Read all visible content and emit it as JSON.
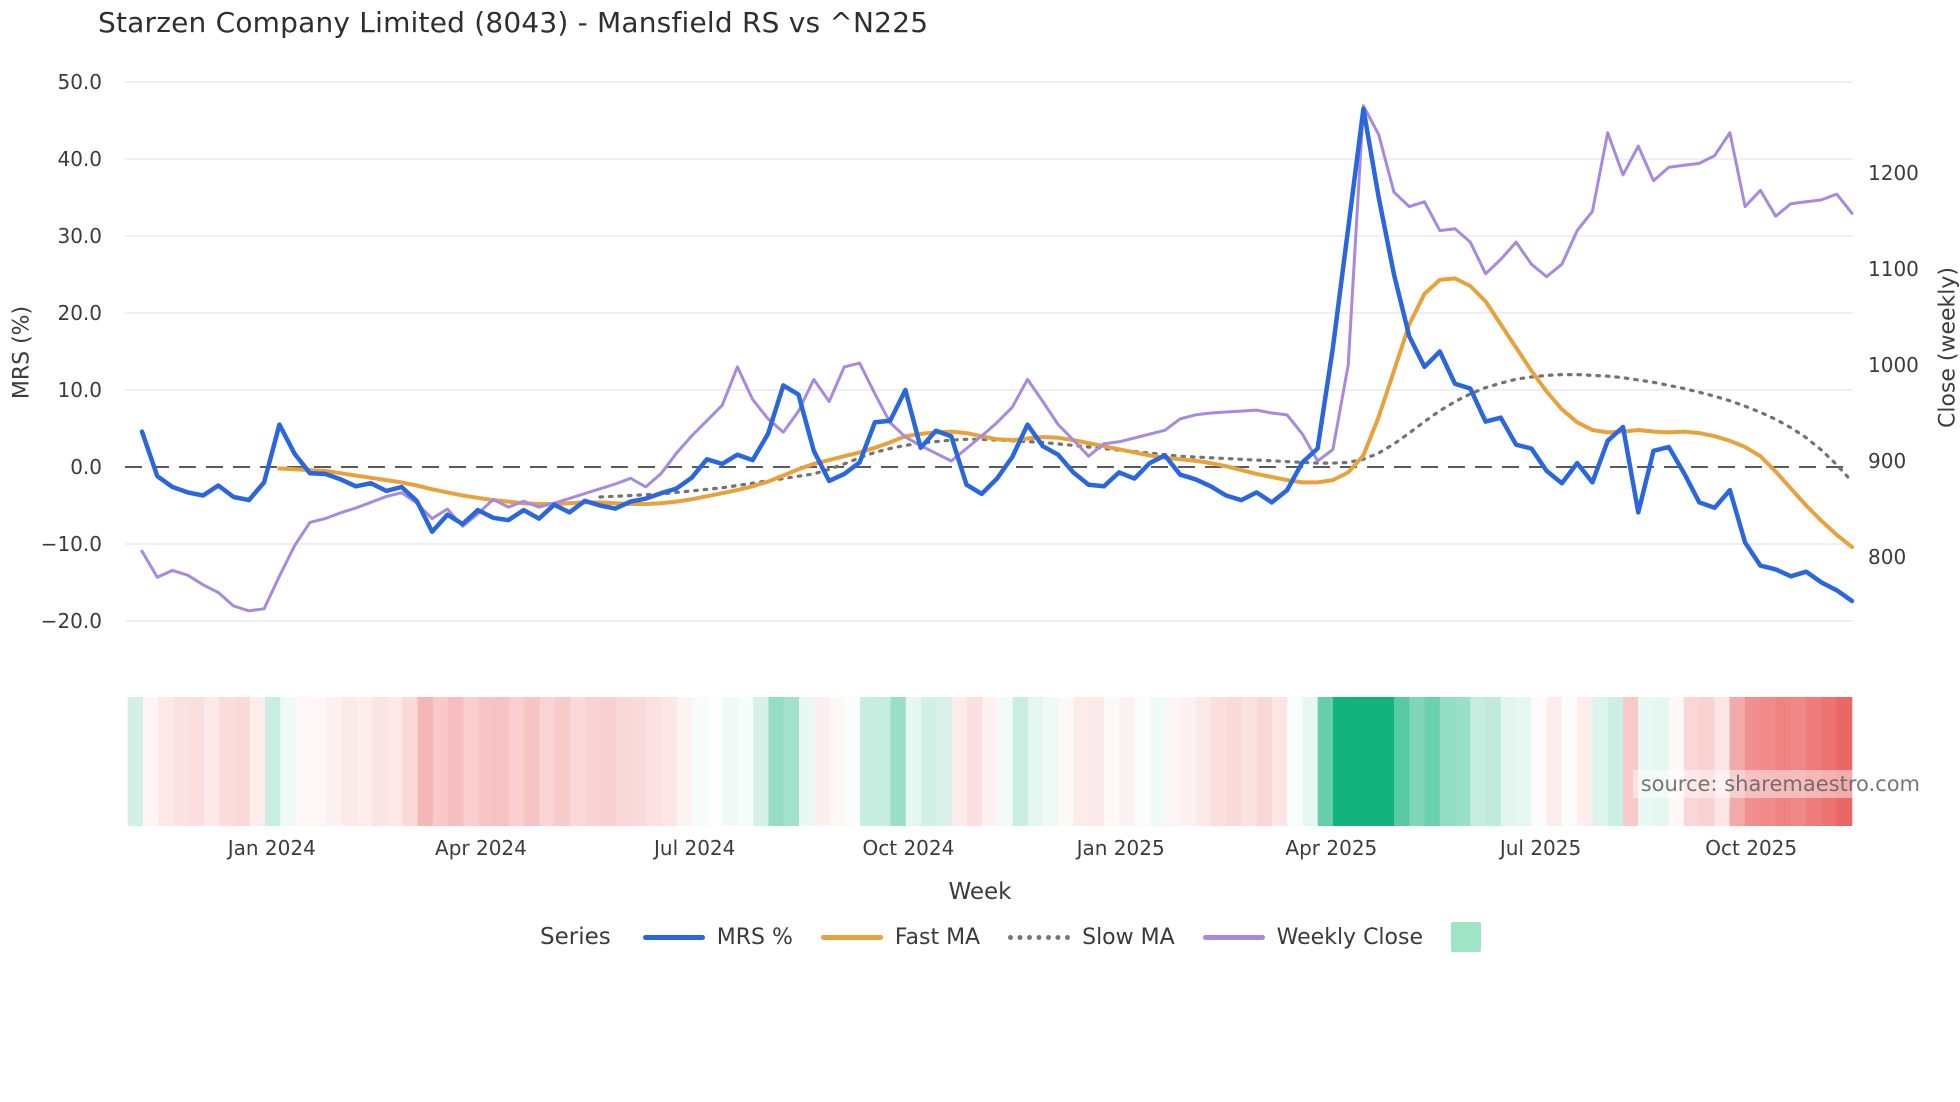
{
  "title": "Starzen Company Limited (8043) - Mansfield RS vs ^N225",
  "source_watermark": "source: sharemaestro.com",
  "axes": {
    "left": {
      "label": "MRS (%)",
      "tick_labels": [
        "50.0",
        "40.0",
        "30.0",
        "20.0",
        "10.0",
        "0.0",
        "−10.0",
        "−20.0"
      ],
      "tick_values": [
        50,
        40,
        30,
        20,
        10,
        0,
        -10,
        -20
      ]
    },
    "right": {
      "label": "Close (weekly)",
      "tick_labels": [
        "1200",
        "1100",
        "1000",
        "900",
        "800"
      ],
      "tick_values": [
        1200,
        1100,
        1000,
        900,
        800
      ]
    },
    "x": {
      "label": "Week",
      "tick_labels": [
        "Jan 2024",
        "Apr 2024",
        "Jul 2024",
        "Oct 2024",
        "Jan 2025",
        "Apr 2025",
        "Jul 2025",
        "Oct 2025"
      ]
    }
  },
  "legend": {
    "title": "Series",
    "items": [
      {
        "label": "MRS %",
        "swatch": "line-blue"
      },
      {
        "label": "Fast MA",
        "swatch": "line-orange"
      },
      {
        "label": "Slow MA",
        "swatch": "line-dotted-gray"
      },
      {
        "label": "Weekly Close",
        "swatch": "line-purple"
      },
      {
        "label": "",
        "swatch": "green-square"
      }
    ]
  },
  "colors": {
    "mrs": "#2a66de",
    "fast_ma": "#e9a13b",
    "slow_ma": "#737373",
    "weekly_close": "#a78ae0",
    "zero_line": "#5a5a5a",
    "gridline": "#e8ecf3",
    "heat_positive": "#12b37d",
    "heat_negative": "#e8504f",
    "legend_square": "#a0e4c7"
  },
  "chart_data": {
    "type": "line",
    "x_unit": "weekly",
    "weeks_shown": 113,
    "x_tick_weeks": [
      8.5,
      22.2,
      36.2,
      50.2,
      64.1,
      77.9,
      91.6,
      105.4
    ],
    "left_axis_range": [
      -25,
      52
    ],
    "right_axis_range": [
      740,
      1300
    ],
    "grid": true,
    "zero_reference_line": 0,
    "series": [
      {
        "name": "MRS %",
        "axis": "left",
        "style": "solid",
        "width": 4.5,
        "values": [
          4.6,
          -1.2,
          -2.6,
          -3.3,
          -3.7,
          -2.4,
          -3.9,
          -4.3,
          -2.0,
          5.5,
          1.7,
          -0.8,
          -0.9,
          -1.6,
          -2.5,
          -2.1,
          -3.1,
          -2.6,
          -4.4,
          -8.4,
          -6.2,
          -7.4,
          -5.6,
          -6.6,
          -6.9,
          -5.6,
          -6.7,
          -4.9,
          -5.9,
          -4.4,
          -5.0,
          -5.4,
          -4.5,
          -4.1,
          -3.4,
          -2.8,
          -1.4,
          1.0,
          0.4,
          1.6,
          0.9,
          4.3,
          10.6,
          9.4,
          2.1,
          -1.8,
          -0.9,
          0.6,
          5.8,
          6.0,
          10.0,
          2.5,
          4.7,
          4.0,
          -2.3,
          -3.5,
          -1.5,
          1.3,
          5.5,
          2.7,
          1.6,
          -0.7,
          -2.3,
          -2.5,
          -0.7,
          -1.5,
          0.5,
          1.5,
          -1.0,
          -1.6,
          -2.5,
          -3.7,
          -4.3,
          -3.3,
          -4.6,
          -3.0,
          0.6,
          2.4,
          15.5,
          31.0,
          46.5,
          35.0,
          25.0,
          17.0,
          13.0,
          15.0,
          10.8,
          10.2,
          5.9,
          6.4,
          2.9,
          2.4,
          -0.5,
          -2.1,
          0.5,
          -2.0,
          3.4,
          5.2,
          -5.9,
          2.1,
          2.6,
          -0.8,
          -4.6,
          -5.3,
          -3.0,
          -9.8,
          -12.8,
          -13.3,
          -14.2,
          -13.6,
          -15.0,
          -16.0,
          -17.4
        ]
      },
      {
        "name": "Fast MA",
        "axis": "left",
        "style": "solid",
        "width": 4,
        "values": [
          null,
          null,
          null,
          null,
          null,
          null,
          null,
          null,
          null,
          -0.2,
          -0.3,
          -0.4,
          -0.5,
          -0.8,
          -1.1,
          -1.4,
          -1.7,
          -2.0,
          -2.4,
          -2.9,
          -3.3,
          -3.7,
          -4.0,
          -4.3,
          -4.5,
          -4.7,
          -4.8,
          -4.8,
          -4.7,
          -4.6,
          -4.6,
          -4.7,
          -4.8,
          -4.8,
          -4.7,
          -4.5,
          -4.2,
          -3.8,
          -3.4,
          -3.0,
          -2.5,
          -1.9,
          -1.1,
          -0.3,
          0.4,
          0.9,
          1.4,
          1.9,
          2.5,
          3.2,
          4.0,
          4.3,
          4.5,
          4.6,
          4.4,
          4.0,
          3.6,
          3.5,
          3.7,
          3.9,
          3.8,
          3.5,
          3.1,
          2.7,
          2.3,
          1.9,
          1.5,
          1.2,
          1.0,
          0.8,
          0.5,
          0.1,
          -0.4,
          -0.9,
          -1.3,
          -1.7,
          -2.0,
          -2.0,
          -1.7,
          -0.7,
          1.5,
          6.5,
          12.5,
          18.5,
          22.5,
          24.3,
          24.5,
          23.5,
          21.5,
          18.5,
          15.5,
          12.5,
          9.8,
          7.5,
          5.8,
          4.8,
          4.5,
          4.6,
          4.8,
          4.6,
          4.5,
          4.6,
          4.4,
          4.0,
          3.4,
          2.6,
          1.4,
          -0.6,
          -2.8,
          -5.0,
          -7.0,
          -8.8,
          -10.4
        ]
      },
      {
        "name": "Slow MA",
        "axis": "left",
        "style": "dotted",
        "width": 3.2,
        "values": [
          null,
          null,
          null,
          null,
          null,
          null,
          null,
          null,
          null,
          null,
          null,
          null,
          null,
          null,
          null,
          null,
          null,
          null,
          null,
          null,
          null,
          null,
          null,
          null,
          null,
          null,
          null,
          null,
          null,
          null,
          -3.9,
          -3.8,
          -3.7,
          -3.6,
          -3.5,
          -3.3,
          -3.1,
          -2.9,
          -2.7,
          -2.4,
          -2.1,
          -1.8,
          -1.5,
          -1.2,
          -0.9,
          -0.3,
          0.4,
          1.2,
          1.9,
          2.4,
          2.8,
          3.1,
          3.3,
          3.5,
          3.6,
          3.6,
          3.5,
          3.4,
          3.3,
          3.2,
          3.0,
          2.8,
          2.6,
          2.4,
          2.2,
          2.0,
          1.8,
          1.6,
          1.4,
          1.3,
          1.2,
          1.1,
          1.0,
          0.9,
          0.8,
          0.7,
          0.6,
          0.5,
          0.5,
          0.6,
          1.0,
          1.8,
          3.0,
          4.4,
          5.9,
          7.3,
          8.5,
          9.5,
          10.3,
          10.9,
          11.4,
          11.7,
          11.9,
          12.0,
          12.0,
          11.9,
          11.8,
          11.6,
          11.3,
          11.0,
          10.6,
          10.2,
          9.7,
          9.2,
          8.6,
          7.9,
          7.1,
          6.2,
          5.1,
          3.8,
          2.2,
          0.3,
          -1.9
        ]
      },
      {
        "name": "Weekly Close",
        "axis": "right",
        "style": "solid",
        "width": 3,
        "values": [
          806,
          779,
          786,
          781,
          771,
          763,
          749,
          744,
          746,
          780,
          812,
          836,
          840,
          846,
          851,
          857,
          863,
          867,
          856,
          840,
          850,
          832,
          845,
          860,
          852,
          858,
          852,
          856,
          861,
          866,
          871,
          876,
          882,
          873,
          887,
          908,
          926,
          942,
          958,
          998,
          964,
          944,
          930,
          952,
          985,
          962,
          998,
          1002,
          970,
          940,
          925,
          916,
          908,
          900,
          913,
          926,
          940,
          956,
          985,
          962,
          938,
          922,
          905,
          918,
          920,
          924,
          928,
          932,
          944,
          948,
          950,
          951,
          952,
          953,
          950,
          948,
          928,
          900,
          912,
          1000,
          1270,
          1240,
          1180,
          1165,
          1170,
          1140,
          1142,
          1128,
          1095,
          1110,
          1128,
          1105,
          1092,
          1105,
          1140,
          1160,
          1242,
          1198,
          1228,
          1192,
          1206,
          1208,
          1210,
          1218,
          1242,
          1165,
          1182,
          1155,
          1168,
          1170,
          1172,
          1178,
          1158
        ]
      }
    ],
    "heatmap_strip": {
      "description": "weekly red/green intensity band derived from MRS % values (green positive, red negative)",
      "derived_from": "MRS %",
      "positive_saturation_at": 24,
      "negative_saturation_at": 20
    }
  }
}
